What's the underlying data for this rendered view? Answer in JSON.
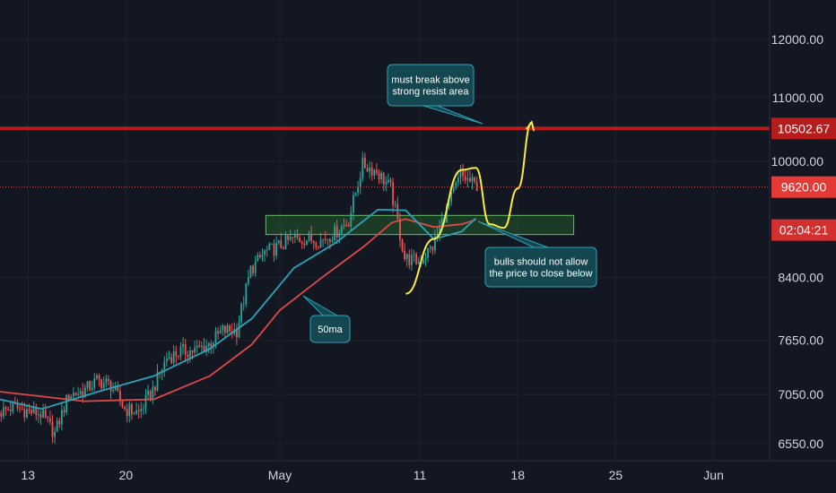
{
  "chart_data": {
    "type": "candlestick",
    "title": "",
    "colors": {
      "background": "#131722",
      "grid": "#1e222d",
      "up": "#26a69a",
      "down": "#ef5350",
      "ma_fast": "#2aa3b8",
      "ma_slow": "#e04848",
      "resistance": "#b71c1c",
      "current_price_line": "#e53935",
      "support_zone_fill": "#2e7d32",
      "support_zone_border": "#66bb6a",
      "projection": "#ffeb3b",
      "note_fill": "#14474f",
      "note_border": "#2aa3b8"
    },
    "y_axis": {
      "ticks": [
        "12000.00",
        "11000.00",
        "10000.00",
        "8400.00",
        "7650.00",
        "7050.00",
        "6550.00"
      ],
      "tick_values": [
        12000,
        11000,
        10000,
        8400,
        7650,
        7050,
        6550
      ],
      "range": [
        6500,
        12500
      ],
      "scale": "log"
    },
    "x_axis": {
      "tick_labels": [
        "13",
        "20",
        "May",
        "11",
        "18",
        "25",
        "Jun"
      ],
      "tick_dates": [
        "2020-04-13",
        "2020-04-20",
        "2020-05-01",
        "2020-05-11",
        "2020-05-18",
        "2020-05-25",
        "2020-06-01"
      ],
      "range": [
        "2020-04-11",
        "2020-06-05"
      ]
    },
    "price_labels": [
      {
        "text": "10502.67",
        "value": 10502.67,
        "kind": "resistance"
      },
      {
        "text": "9620.00",
        "value": 9620,
        "kind": "last_price"
      },
      {
        "text": "02:04:21",
        "value": 9020,
        "kind": "countdown"
      }
    ],
    "resistance_line": 10502.67,
    "current_price": 9620,
    "support_zone": {
      "from": "2020-04-30",
      "to": "2020-05-22",
      "low": 8960,
      "high": 9220
    },
    "candle_interval_hours": 4,
    "close_anchors": [
      [
        "2020-04-11",
        6860
      ],
      [
        "2020-04-12",
        6920
      ],
      [
        "2020-04-13",
        6880
      ],
      [
        "2020-04-14",
        6850
      ],
      [
        "2020-04-15",
        6650
      ],
      [
        "2020-04-16",
        7050
      ],
      [
        "2020-04-17",
        7080
      ],
      [
        "2020-04-18",
        7200
      ],
      [
        "2020-04-19",
        7150
      ],
      [
        "2020-04-20",
        6900
      ],
      [
        "2020-04-21",
        6860
      ],
      [
        "2020-04-22",
        7100
      ],
      [
        "2020-04-23",
        7450
      ],
      [
        "2020-04-24",
        7520
      ],
      [
        "2020-04-25",
        7530
      ],
      [
        "2020-04-26",
        7600
      ],
      [
        "2020-04-27",
        7760
      ],
      [
        "2020-04-28",
        7760
      ],
      [
        "2020-04-29",
        8500
      ],
      [
        "2020-04-30",
        8720
      ],
      [
        "2020-05-01",
        8800
      ],
      [
        "2020-05-02",
        8900
      ],
      [
        "2020-05-03",
        8900
      ],
      [
        "2020-05-04",
        8880
      ],
      [
        "2020-05-05",
        8980
      ],
      [
        "2020-05-06",
        9150
      ],
      [
        "2020-05-07",
        9950
      ],
      [
        "2020-05-08",
        9850
      ],
      [
        "2020-05-09",
        9600
      ],
      [
        "2020-05-10",
        8650
      ],
      [
        "2020-05-11",
        8600
      ],
      [
        "2020-05-12",
        8800
      ],
      [
        "2020-05-13",
        9300
      ],
      [
        "2020-05-14",
        9790
      ],
      [
        "2020-05-15",
        9650
      ]
    ],
    "series": [
      {
        "name": "50ma",
        "type": "line",
        "color_key": "ma_slow",
        "points": [
          [
            "2020-04-11",
            7080
          ],
          [
            "2020-04-17",
            6980
          ],
          [
            "2020-04-22",
            7000
          ],
          [
            "2020-04-26",
            7250
          ],
          [
            "2020-04-29",
            7600
          ],
          [
            "2020-05-01",
            8000
          ],
          [
            "2020-05-04",
            8400
          ],
          [
            "2020-05-07",
            8800
          ],
          [
            "2020-05-09",
            9120
          ],
          [
            "2020-05-10",
            9170
          ],
          [
            "2020-05-12",
            9060
          ],
          [
            "2020-05-14",
            9100
          ],
          [
            "2020-05-15",
            9160
          ]
        ]
      },
      {
        "name": "",
        "type": "line",
        "color_key": "ma_fast",
        "points": [
          [
            "2020-04-11",
            7000
          ],
          [
            "2020-04-14",
            6900
          ],
          [
            "2020-04-18",
            7080
          ],
          [
            "2020-04-22",
            7250
          ],
          [
            "2020-04-26",
            7550
          ],
          [
            "2020-04-29",
            7900
          ],
          [
            "2020-05-02",
            8520
          ],
          [
            "2020-05-05",
            8850
          ],
          [
            "2020-05-08",
            9300
          ],
          [
            "2020-05-10",
            9290
          ],
          [
            "2020-05-12",
            8900
          ],
          [
            "2020-05-14",
            9000
          ],
          [
            "2020-05-15",
            9180
          ]
        ]
      }
    ],
    "projection_path": [
      [
        "2020-05-10",
        8200
      ],
      [
        "2020-05-12",
        8900
      ],
      [
        "2020-05-14",
        9870
      ],
      [
        "2020-05-15",
        9900
      ],
      [
        "2020-05-16",
        9100
      ],
      [
        "2020-05-17",
        9050
      ],
      [
        "2020-05-18",
        9600
      ],
      [
        "2020-05-19",
        10600
      ]
    ],
    "annotations": [
      {
        "id": "resist-note",
        "lines": [
          "must break above",
          "strong resist area"
        ]
      },
      {
        "id": "support-note",
        "lines": [
          "bulls should not allow",
          "the price to close below"
        ]
      },
      {
        "id": "ma-note",
        "lines": [
          "50ma"
        ]
      }
    ]
  }
}
